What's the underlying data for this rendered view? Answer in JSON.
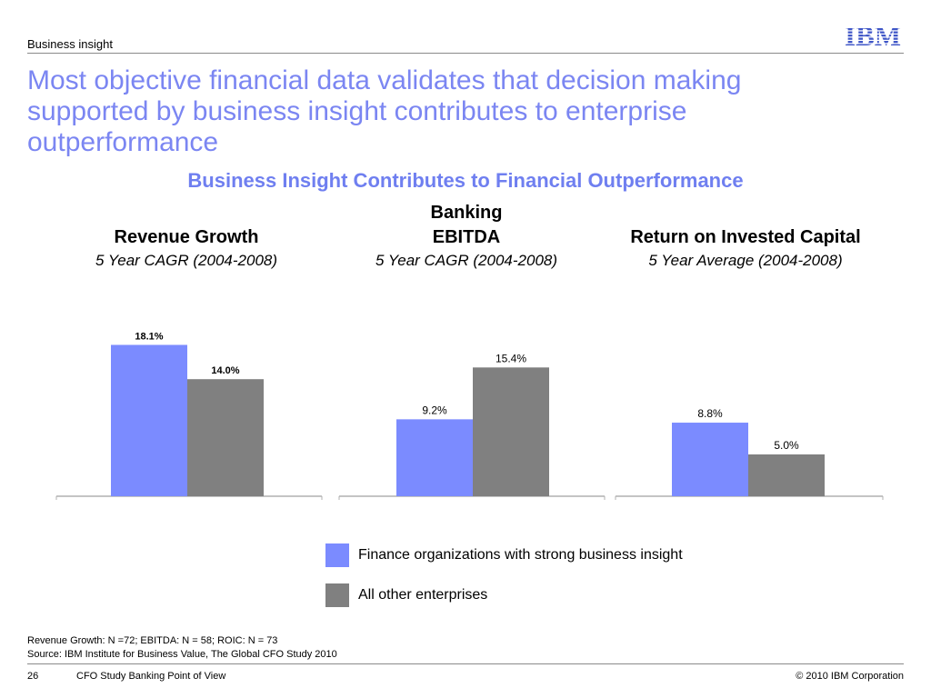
{
  "header": {
    "section": "Business insight",
    "logo_text": "IBM"
  },
  "title": "Most objective financial data validates that decision making supported by business insight contributes to enterprise outperformance",
  "chart_heading": "Business Insight Contributes to Financial Outperformance",
  "colors": {
    "accent": "#7b86f2",
    "series_1": "#7b8bff",
    "series_2": "#808080",
    "axis": "#b0b0b0"
  },
  "chart_data": [
    {
      "type": "bar",
      "title": "Revenue Growth",
      "title_prefix": "",
      "subtitle": "5 Year CAGR (2004-2008)",
      "series": [
        {
          "name": "Finance organizations with strong business insight",
          "values": [
            18.1
          ],
          "labels": [
            "18.1%"
          ]
        },
        {
          "name": "All other enterprises",
          "values": [
            14.0
          ],
          "labels": [
            "14.0%"
          ]
        }
      ],
      "label_style": "bold"
    },
    {
      "type": "bar",
      "title": "EBITDA",
      "title_prefix": "Banking",
      "subtitle": "5 Year CAGR (2004-2008)",
      "series": [
        {
          "name": "Finance organizations with strong business insight",
          "values": [
            9.2
          ],
          "labels": [
            "9.2%"
          ]
        },
        {
          "name": "All other enterprises",
          "values": [
            15.4
          ],
          "labels": [
            "15.4%"
          ]
        }
      ],
      "label_style": "normal"
    },
    {
      "type": "bar",
      "title": "Return on Invested Capital",
      "title_prefix": "",
      "subtitle": "5 Year Average (2004-2008)",
      "series": [
        {
          "name": "Finance organizations with strong business insight",
          "values": [
            8.8
          ],
          "labels": [
            "8.8%"
          ]
        },
        {
          "name": "All other enterprises",
          "values": [
            5.0
          ],
          "labels": [
            "5.0%"
          ]
        }
      ],
      "label_style": "normal"
    }
  ],
  "legend": [
    {
      "label": "Finance organizations with strong business insight"
    },
    {
      "label": "All other enterprises"
    }
  ],
  "notes": {
    "line1": "Revenue Growth: N =72; EBITDA: N = 58; ROIC: N = 73",
    "line2": "Source: IBM Institute for Business Value, The Global CFO Study 2010"
  },
  "footer": {
    "page": "26",
    "doc": "CFO Study Banking Point of View",
    "copyright": "© 2010 IBM Corporation"
  }
}
